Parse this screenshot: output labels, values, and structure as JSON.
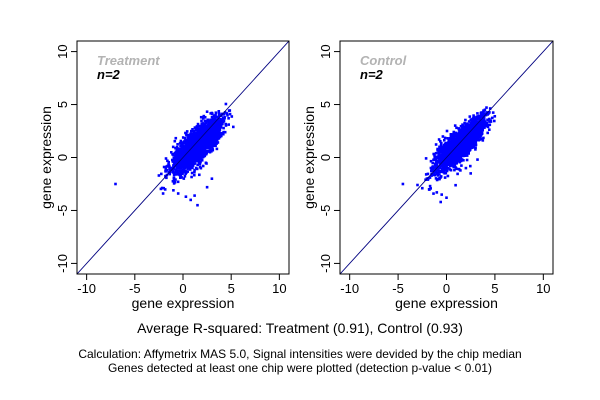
{
  "chart_data": [
    {
      "type": "scatter",
      "title": "Treatment",
      "annotation": "n=2",
      "xlabel": "gene expression",
      "ylabel": "gene expression",
      "xlim": [
        -11,
        11
      ],
      "ylim": [
        -11,
        11
      ],
      "xticks": [
        -10,
        -5,
        0,
        5,
        10
      ],
      "yticks": [
        -10,
        -5,
        0,
        5,
        10
      ],
      "reference_line": "y = x",
      "point_color": "#0000ff",
      "line_color": "#000080",
      "cloud": {
        "center": [
          1.5,
          1.2
        ],
        "spread_major": 1.6,
        "spread_minor": 0.45,
        "x_range": [
          -2.5,
          6.2
        ]
      },
      "outliers": [
        [
          -7.0,
          -2.5
        ],
        [
          -2.5,
          -1.7
        ],
        [
          -2.0,
          -2.9
        ],
        [
          -1.0,
          -3.1
        ],
        [
          -0.5,
          -3.4
        ],
        [
          0.3,
          -3.7
        ],
        [
          0.8,
          -4.0
        ],
        [
          1.5,
          -4.5
        ],
        [
          1.2,
          -3.6
        ],
        [
          -1.6,
          -0.8
        ],
        [
          2.5,
          -2.8
        ],
        [
          3.0,
          -2.0
        ]
      ]
    },
    {
      "type": "scatter",
      "title": "Control",
      "annotation": "n=2",
      "xlabel": "gene expression",
      "ylabel": "gene expression",
      "xlim": [
        -11,
        11
      ],
      "ylim": [
        -11,
        11
      ],
      "xticks": [
        -10,
        -5,
        0,
        5,
        10
      ],
      "yticks": [
        -10,
        -5,
        0,
        5,
        10
      ],
      "reference_line": "y = x",
      "point_color": "#0000ff",
      "line_color": "#000080",
      "cloud": {
        "center": [
          1.5,
          1.3
        ],
        "spread_major": 1.6,
        "spread_minor": 0.42,
        "x_range": [
          -2.3,
          6.3
        ]
      },
      "outliers": [
        [
          -4.5,
          -2.5
        ],
        [
          -3.0,
          -2.6
        ],
        [
          -2.5,
          -2.9
        ],
        [
          -1.8,
          -3.0
        ],
        [
          -1.0,
          -3.3
        ],
        [
          -0.5,
          -3.5
        ],
        [
          0.0,
          -3.8
        ],
        [
          -0.6,
          -4.2
        ],
        [
          2.0,
          -1.0
        ],
        [
          2.5,
          -1.5
        ],
        [
          -1.5,
          -1.2
        ],
        [
          3.2,
          -0.2
        ]
      ]
    }
  ],
  "caption": {
    "main": "Average R-squared: Treatment (0.91), Control (0.93)",
    "line1": "Calculation: Affymetrix MAS 5.0, Signal intensities were devided by the chip median",
    "line2": "Genes detected at least one chip were plotted (detection p-value < 0.01)"
  }
}
